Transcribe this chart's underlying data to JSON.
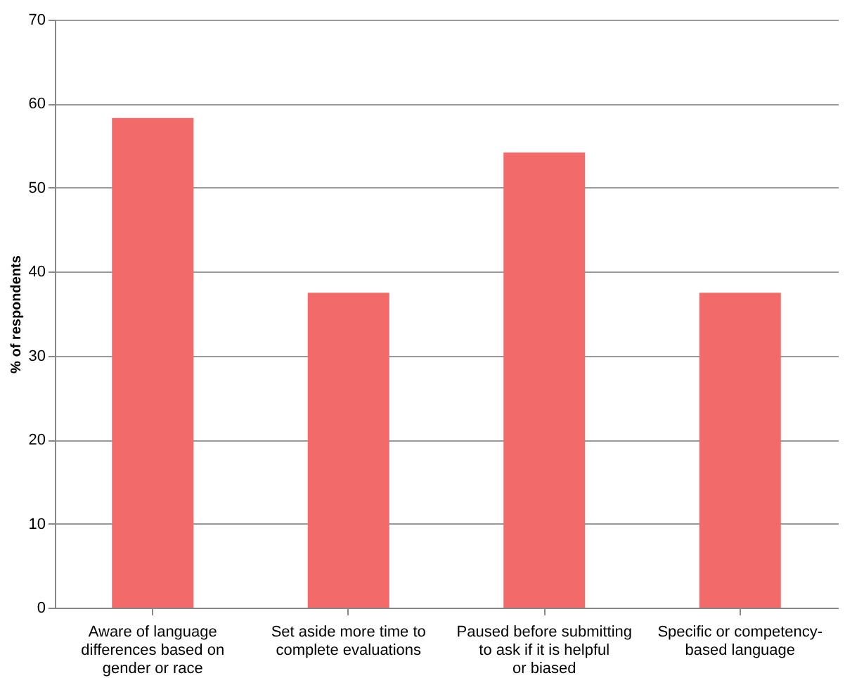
{
  "chart_data": {
    "type": "bar",
    "categories": [
      "Aware of language differences based on gender or race",
      "Set aside more time to complete evaluations",
      "Paused before submitting to ask if it is helpful or biased",
      "Specific or competency-based language"
    ],
    "values": [
      58.3,
      37.5,
      54.2,
      37.5
    ],
    "color": "#f26a6a",
    "ylabel": "% of respondents",
    "ylim": [
      0,
      70
    ],
    "yticks": [
      0,
      10,
      20,
      30,
      40,
      50,
      60,
      70
    ],
    "grid": "y"
  }
}
